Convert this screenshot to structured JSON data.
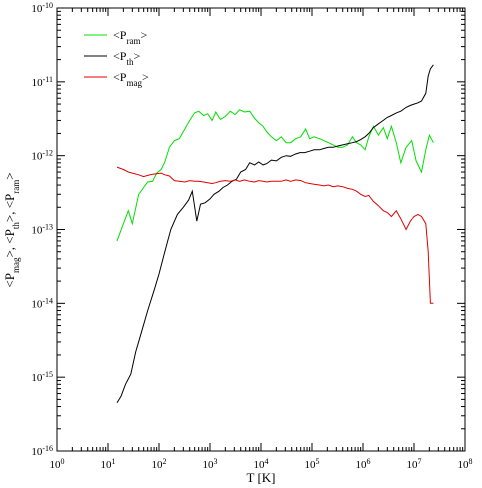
{
  "chart_data": {
    "type": "line",
    "xscale": "log",
    "yscale": "log",
    "xlim": [
      1,
      100000000
    ],
    "ylim": [
      1e-16,
      1e-10
    ],
    "xlabel": "T [K]",
    "ylabel": "<P_mag>, <P_th>, <P_ram>",
    "x_tick_labels": [
      {
        "x": 1,
        "base": "10",
        "exp": "0"
      },
      {
        "x": 10,
        "base": "10",
        "exp": "1"
      },
      {
        "x": 100,
        "base": "10",
        "exp": "2"
      },
      {
        "x": 1000,
        "base": "10",
        "exp": "3"
      },
      {
        "x": 10000,
        "base": "10",
        "exp": "4"
      },
      {
        "x": 100000,
        "base": "10",
        "exp": "5"
      },
      {
        "x": 1000000,
        "base": "10",
        "exp": "6"
      },
      {
        "x": 10000000,
        "base": "10",
        "exp": "7"
      },
      {
        "x": 100000000,
        "base": "10",
        "exp": "8"
      }
    ],
    "y_tick_labels": [
      {
        "y": 1e-16,
        "base": "10",
        "exp": "-16"
      },
      {
        "y": 1e-15,
        "base": "10",
        "exp": "-15"
      },
      {
        "y": 1e-14,
        "base": "10",
        "exp": "-14"
      },
      {
        "y": 1e-13,
        "base": "10",
        "exp": "-13"
      },
      {
        "y": 1e-12,
        "base": "10",
        "exp": "-12"
      },
      {
        "y": 1e-11,
        "base": "10",
        "exp": "-11"
      },
      {
        "y": 1e-10,
        "base": "10",
        "exp": "-10"
      }
    ],
    "grid": false,
    "legend_position": "top-left",
    "series": [
      {
        "name": "<P_ram>",
        "label_main": "<P",
        "label_sub": "ram",
        "label_end": ">",
        "color": "#00e000",
        "points": [
          [
            15,
            7e-14
          ],
          [
            20,
            1.2e-13
          ],
          [
            25,
            1.8e-13
          ],
          [
            30,
            1.2e-13
          ],
          [
            40,
            3e-13
          ],
          [
            50,
            3.7e-13
          ],
          [
            60,
            4.4e-13
          ],
          [
            75,
            4.5e-13
          ],
          [
            90,
            5.8e-13
          ],
          [
            110,
            6.5e-13
          ],
          [
            130,
            8.2e-13
          ],
          [
            160,
            1.3e-12
          ],
          [
            200,
            1.6e-12
          ],
          [
            250,
            1.7e-12
          ],
          [
            320,
            2.3e-12
          ],
          [
            400,
            3e-12
          ],
          [
            500,
            3.8e-12
          ],
          [
            600,
            4e-12
          ],
          [
            750,
            3.5e-12
          ],
          [
            900,
            3.7e-12
          ],
          [
            1100,
            3e-12
          ],
          [
            1300,
            3.9e-12
          ],
          [
            1600,
            3.1e-12
          ],
          [
            2000,
            3.4e-12
          ],
          [
            2500,
            4e-12
          ],
          [
            3100,
            3.6e-12
          ],
          [
            3800,
            4.2e-12
          ],
          [
            4700,
            3.9e-12
          ],
          [
            6000,
            4e-12
          ],
          [
            7500,
            3.2e-12
          ],
          [
            9000,
            2.8e-12
          ],
          [
            11000,
            2.5e-12
          ],
          [
            13000,
            2.1e-12
          ],
          [
            16000,
            1.8e-12
          ],
          [
            20000,
            1.6e-12
          ],
          [
            25000,
            1.8e-12
          ],
          [
            31000,
            1.5e-12
          ],
          [
            38000,
            1.5e-12
          ],
          [
            48000,
            1.7e-12
          ],
          [
            60000,
            1.8e-12
          ],
          [
            75000,
            2.3e-12
          ],
          [
            90000,
            1.7e-12
          ],
          [
            110000,
            1.8e-12
          ],
          [
            140000,
            1.7e-12
          ],
          [
            170000,
            1.6e-12
          ],
          [
            210000,
            1.5e-12
          ],
          [
            260000,
            1.4e-12
          ],
          [
            320000,
            1.3e-12
          ],
          [
            400000,
            1.3e-12
          ],
          [
            500000,
            1.4e-12
          ],
          [
            620000,
            1.8e-12
          ],
          [
            750000,
            1.5e-12
          ],
          [
            900000,
            1.4e-12
          ],
          [
            1100000,
            1.2e-12
          ],
          [
            1300000,
            1.8e-12
          ],
          [
            1600000,
            2.5e-12
          ],
          [
            2000000,
            1.9e-12
          ],
          [
            2500000,
            2.4e-12
          ],
          [
            3000000,
            1.7e-12
          ],
          [
            3600000,
            2.5e-12
          ],
          [
            4500000,
            1.5e-12
          ],
          [
            5500000,
            8e-13
          ],
          [
            7000000,
            1.3e-12
          ],
          [
            9000000,
            1.6e-12
          ],
          [
            11000000,
            8.5e-13
          ],
          [
            14000000,
            6e-13
          ],
          [
            17000000,
            1.2e-12
          ],
          [
            20000000,
            1.9e-12
          ],
          [
            24000000,
            1.5e-12
          ]
        ]
      },
      {
        "name": "<P_th>",
        "label_main": "<P",
        "label_sub": "th",
        "label_end": ">",
        "color": "#000000",
        "points": [
          [
            15,
            4.5e-16
          ],
          [
            18,
            5.5e-16
          ],
          [
            22,
            8e-16
          ],
          [
            28,
            1.1e-15
          ],
          [
            35,
            2.2e-15
          ],
          [
            45,
            4e-15
          ],
          [
            60,
            8e-15
          ],
          [
            80,
            1.5e-14
          ],
          [
            100,
            2.5e-14
          ],
          [
            130,
            5e-14
          ],
          [
            170,
            1e-13
          ],
          [
            230,
            1.6e-13
          ],
          [
            300,
            2e-13
          ],
          [
            380,
            2.5e-13
          ],
          [
            450,
            3.3e-13
          ],
          [
            550,
            1.3e-13
          ],
          [
            650,
            2.2e-13
          ],
          [
            800,
            2.3e-13
          ],
          [
            1000,
            2.6e-13
          ],
          [
            1200,
            3e-13
          ],
          [
            1500,
            3.3e-13
          ],
          [
            1800,
            3.7e-13
          ],
          [
            2200,
            4e-13
          ],
          [
            2700,
            4.5e-13
          ],
          [
            3300,
            4.8e-13
          ],
          [
            4000,
            6e-13
          ],
          [
            5000,
            6.5e-13
          ],
          [
            6000,
            8e-13
          ],
          [
            7500,
            7.5e-13
          ],
          [
            9000,
            8.2e-13
          ],
          [
            11000,
            7.5e-13
          ],
          [
            13000,
            7.8e-13
          ],
          [
            16000,
            8.7e-13
          ],
          [
            20000,
            8.5e-13
          ],
          [
            25000,
            9.5e-13
          ],
          [
            31000,
            1e-12
          ],
          [
            38000,
            9.8e-13
          ],
          [
            47000,
            1.05e-12
          ],
          [
            58000,
            1.1e-12
          ],
          [
            72000,
            1.1e-12
          ],
          [
            90000,
            1.15e-12
          ],
          [
            110000,
            1.2e-12
          ],
          [
            140000,
            1.2e-12
          ],
          [
            170000,
            1.25e-12
          ],
          [
            210000,
            1.3e-12
          ],
          [
            260000,
            1.3e-12
          ],
          [
            320000,
            1.35e-12
          ],
          [
            400000,
            1.4e-12
          ],
          [
            500000,
            1.45e-12
          ],
          [
            620000,
            1.5e-12
          ],
          [
            750000,
            1.55e-12
          ],
          [
            900000,
            1.65e-12
          ],
          [
            1100000,
            1.8e-12
          ],
          [
            1300000,
            2e-12
          ],
          [
            1600000,
            2.4e-12
          ],
          [
            2000000,
            2.7e-12
          ],
          [
            2500000,
            3e-12
          ],
          [
            3000000,
            3.3e-12
          ],
          [
            3600000,
            3.5e-12
          ],
          [
            4500000,
            3.8e-12
          ],
          [
            5500000,
            4e-12
          ],
          [
            7000000,
            4.5e-12
          ],
          [
            8500000,
            4.8e-12
          ],
          [
            10000000,
            5e-12
          ],
          [
            12000000,
            5.2e-12
          ],
          [
            14000000,
            5.5e-12
          ],
          [
            17000000,
            7e-12
          ],
          [
            19000000,
            1.2e-11
          ],
          [
            21000000,
            1.5e-11
          ],
          [
            24000000,
            1.7e-11
          ]
        ]
      },
      {
        "name": "<P_mag>",
        "label_main": "<P",
        "label_sub": "mag",
        "label_end": ">",
        "color": "#e00000",
        "points": [
          [
            15,
            7e-13
          ],
          [
            20,
            6.5e-13
          ],
          [
            25,
            6e-13
          ],
          [
            30,
            5.8e-13
          ],
          [
            40,
            5.5e-13
          ],
          [
            50,
            5.2e-13
          ],
          [
            60,
            5.4e-13
          ],
          [
            75,
            5.6e-13
          ],
          [
            90,
            5.7e-13
          ],
          [
            110,
            5.8e-13
          ],
          [
            130,
            5.5e-13
          ],
          [
            160,
            5.3e-13
          ],
          [
            200,
            4.6e-13
          ],
          [
            250,
            4.5e-13
          ],
          [
            320,
            4.4e-13
          ],
          [
            400,
            4.6e-13
          ],
          [
            500,
            4.5e-13
          ],
          [
            600,
            4.5e-13
          ],
          [
            750,
            4.4e-13
          ],
          [
            900,
            4.3e-13
          ],
          [
            1100,
            4.2e-13
          ],
          [
            1300,
            4.3e-13
          ],
          [
            1600,
            4.5e-13
          ],
          [
            2000,
            4.6e-13
          ],
          [
            2500,
            4.5e-13
          ],
          [
            3100,
            4.7e-13
          ],
          [
            3800,
            4.5e-13
          ],
          [
            4700,
            4.7e-13
          ],
          [
            6000,
            4.5e-13
          ],
          [
            7500,
            4.4e-13
          ],
          [
            9000,
            4.6e-13
          ],
          [
            11000,
            4.5e-13
          ],
          [
            13000,
            4.4e-13
          ],
          [
            16000,
            4.5e-13
          ],
          [
            20000,
            4.5e-13
          ],
          [
            25000,
            4.5e-13
          ],
          [
            31000,
            4.7e-13
          ],
          [
            38000,
            4.5e-13
          ],
          [
            48000,
            4.7e-13
          ],
          [
            60000,
            4.6e-13
          ],
          [
            75000,
            4.3e-13
          ],
          [
            90000,
            4.2e-13
          ],
          [
            110000,
            4.1e-13
          ],
          [
            140000,
            4e-13
          ],
          [
            170000,
            3.9e-13
          ],
          [
            210000,
            4e-13
          ],
          [
            260000,
            3.8e-13
          ],
          [
            320000,
            3.9e-13
          ],
          [
            400000,
            3.8e-13
          ],
          [
            500000,
            3.6e-13
          ],
          [
            620000,
            3.5e-13
          ],
          [
            750000,
            3.3e-13
          ],
          [
            900000,
            3e-13
          ],
          [
            1100000,
            2.8e-13
          ],
          [
            1300000,
            2.9e-13
          ],
          [
            1600000,
            2.4e-13
          ],
          [
            2000000,
            2.1e-13
          ],
          [
            2500000,
            1.8e-13
          ],
          [
            3000000,
            1.7e-13
          ],
          [
            3600000,
            1.5e-13
          ],
          [
            4500000,
            1.8e-13
          ],
          [
            5500000,
            1.4e-13
          ],
          [
            7000000,
            1e-13
          ],
          [
            8500000,
            1.3e-13
          ],
          [
            10000000,
            1.5e-13
          ],
          [
            12000000,
            1.6e-13
          ],
          [
            14000000,
            1.5e-13
          ],
          [
            17000000,
            1.2e-13
          ],
          [
            19000000,
            5e-14
          ],
          [
            21000000,
            1e-14
          ],
          [
            24000000,
            1e-14
          ]
        ]
      }
    ]
  }
}
